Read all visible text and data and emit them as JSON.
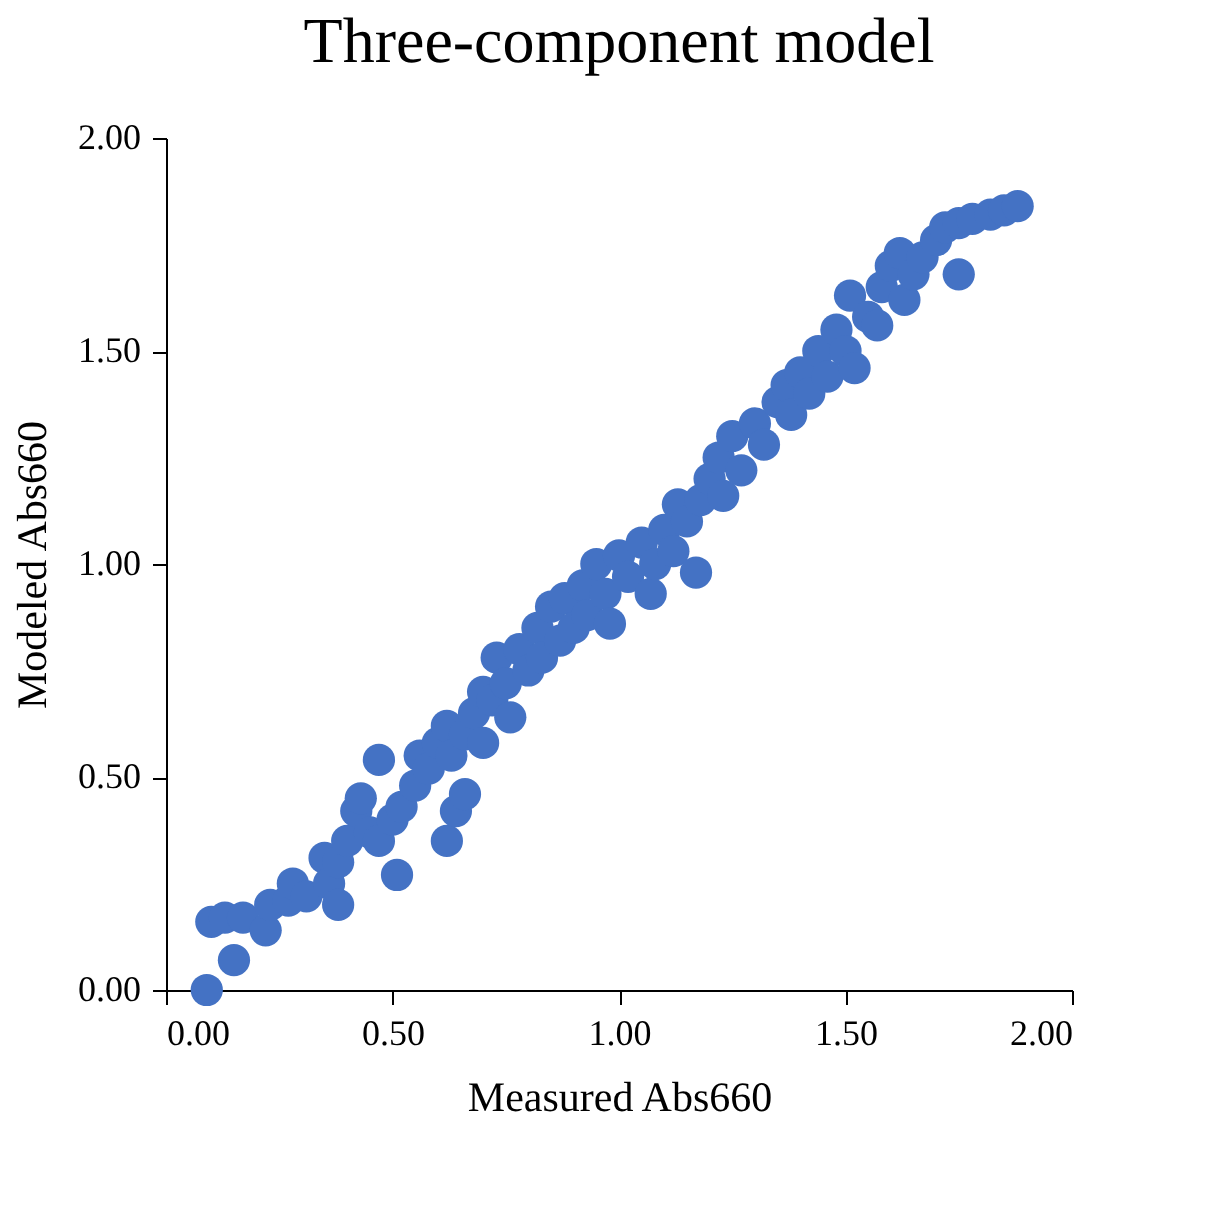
{
  "chart_data": {
    "type": "scatter",
    "title": "Three-component  model",
    "xlabel": "Measured Abs660",
    "ylabel": "Modeled Abs660",
    "xlim": [
      0,
      2
    ],
    "ylim": [
      0,
      2
    ],
    "xticks": [
      {
        "value": 0,
        "label": "0.00"
      },
      {
        "value": 0.5,
        "label": "0.50"
      },
      {
        "value": 1,
        "label": "1.00"
      },
      {
        "value": 1.5,
        "label": "1.50"
      },
      {
        "value": 2,
        "label": "2.00"
      }
    ],
    "yticks": [
      {
        "value": 0,
        "label": "0.00"
      },
      {
        "value": 0.5,
        "label": "0.50"
      },
      {
        "value": 1,
        "label": "1.00"
      },
      {
        "value": 1.5,
        "label": "1.50"
      },
      {
        "value": 2,
        "label": "2.00"
      }
    ],
    "grid": false,
    "marker": "circle",
    "series": [
      {
        "color": "#4472c4",
        "x": [
          0.09,
          0.1,
          0.13,
          0.15,
          0.17,
          0.22,
          0.23,
          0.27,
          0.28,
          0.31,
          0.35,
          0.36,
          0.38,
          0.38,
          0.4,
          0.42,
          0.43,
          0.45,
          0.47,
          0.47,
          0.5,
          0.51,
          0.52,
          0.55,
          0.56,
          0.58,
          0.6,
          0.62,
          0.62,
          0.63,
          0.64,
          0.66,
          0.66,
          0.68,
          0.7,
          0.7,
          0.72,
          0.73,
          0.75,
          0.76,
          0.78,
          0.8,
          0.82,
          0.83,
          0.85,
          0.87,
          0.88,
          0.9,
          0.92,
          0.93,
          0.95,
          0.97,
          0.98,
          1.0,
          1.02,
          1.05,
          1.07,
          1.08,
          1.1,
          1.12,
          1.13,
          1.15,
          1.17,
          1.18,
          1.2,
          1.22,
          1.23,
          1.25,
          1.27,
          1.3,
          1.32,
          1.35,
          1.37,
          1.38,
          1.4,
          1.42,
          1.44,
          1.46,
          1.48,
          1.5,
          1.51,
          1.52,
          1.55,
          1.57,
          1.58,
          1.6,
          1.62,
          1.63,
          1.65,
          1.67,
          1.7,
          1.72,
          1.75,
          1.75,
          1.78,
          1.82,
          1.85,
          1.88
        ],
        "values": [
          0.0,
          0.16,
          0.17,
          0.07,
          0.17,
          0.14,
          0.2,
          0.21,
          0.25,
          0.22,
          0.31,
          0.25,
          0.2,
          0.3,
          0.35,
          0.42,
          0.45,
          0.37,
          0.54,
          0.35,
          0.4,
          0.27,
          0.43,
          0.48,
          0.55,
          0.52,
          0.58,
          0.62,
          0.35,
          0.55,
          0.42,
          0.46,
          0.6,
          0.65,
          0.7,
          0.58,
          0.68,
          0.78,
          0.72,
          0.64,
          0.8,
          0.75,
          0.85,
          0.78,
          0.9,
          0.82,
          0.92,
          0.85,
          0.95,
          0.88,
          1.0,
          0.93,
          0.86,
          1.02,
          0.97,
          1.05,
          0.93,
          1.0,
          1.08,
          1.03,
          1.14,
          1.1,
          0.98,
          1.15,
          1.2,
          1.25,
          1.16,
          1.3,
          1.22,
          1.33,
          1.28,
          1.38,
          1.42,
          1.35,
          1.45,
          1.4,
          1.5,
          1.44,
          1.55,
          1.5,
          1.63,
          1.46,
          1.58,
          1.56,
          1.65,
          1.7,
          1.73,
          1.62,
          1.68,
          1.72,
          1.76,
          1.79,
          1.68,
          1.8,
          1.81,
          1.82,
          1.83,
          1.84
        ]
      }
    ]
  }
}
